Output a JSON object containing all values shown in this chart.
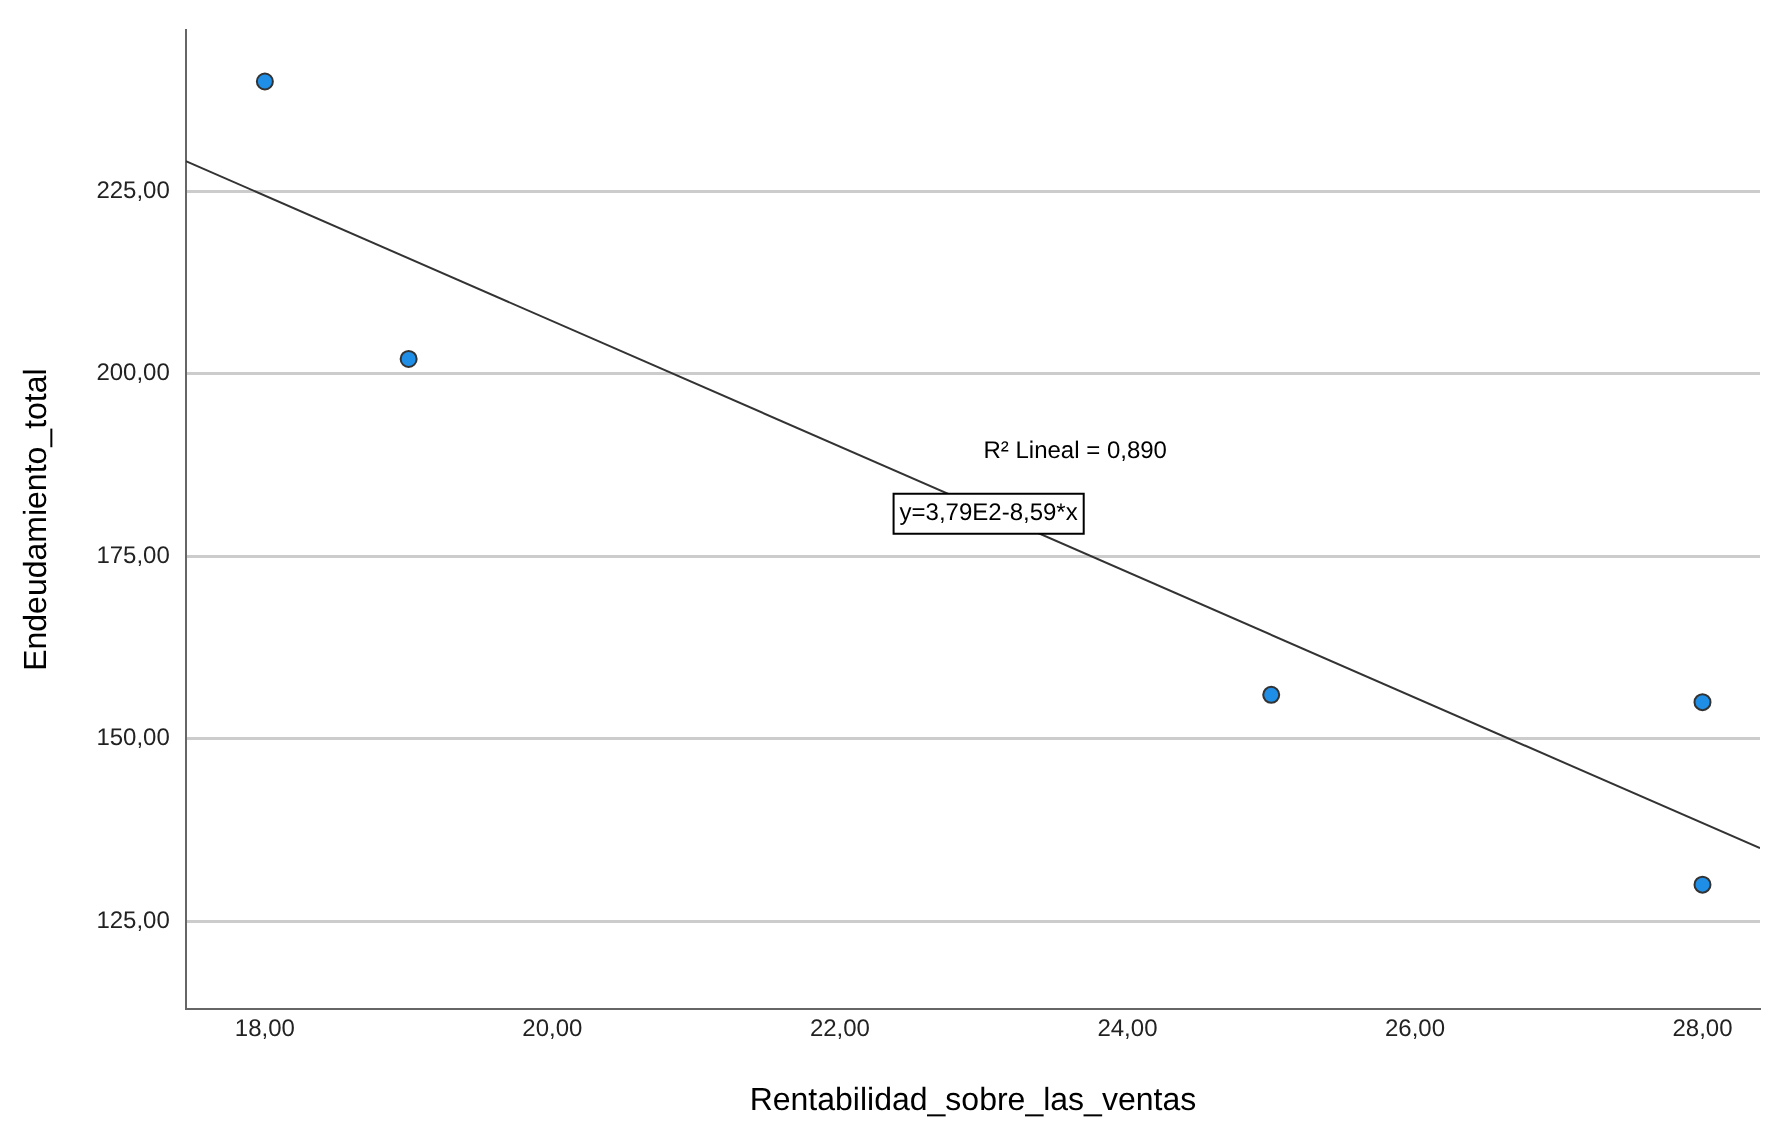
{
  "chart_data": {
    "type": "scatter",
    "xlabel": "Rentabilidad_sobre_las_ventas",
    "ylabel": "Endeudamiento_total",
    "x": [
      18,
      19,
      25,
      28,
      28
    ],
    "series": [
      {
        "color": "#1f8ee6",
        "values": [
          240,
          202,
          156,
          155,
          130
        ],
        "marker": "circle"
      },
      {
        "type": "line",
        "color": "#333333",
        "x": [
          17.45,
          28.4
        ],
        "values": [
          229.1,
          135.0
        ],
        "marker": "none"
      }
    ],
    "xlim": [
      17.45,
      28.4
    ],
    "ylim": [
      113,
      247
    ],
    "xticks": [
      {
        "value": 18,
        "label": "18,00"
      },
      {
        "value": 20,
        "label": "20,00"
      },
      {
        "value": 22,
        "label": "22,00"
      },
      {
        "value": 24,
        "label": "24,00"
      },
      {
        "value": 26,
        "label": "26,00"
      },
      {
        "value": 28,
        "label": "28,00"
      }
    ],
    "yticks": [
      {
        "value": 125,
        "label": "125,00"
      },
      {
        "value": 150,
        "label": "150,00"
      },
      {
        "value": 175,
        "label": "175,00"
      },
      {
        "value": 200,
        "label": "200,00"
      },
      {
        "value": 225,
        "label": "225,00"
      }
    ],
    "grid": "y",
    "legend": false,
    "annotations": [
      "R² Lineal = 0,890",
      "y=3,79E2-8,59*x"
    ]
  }
}
